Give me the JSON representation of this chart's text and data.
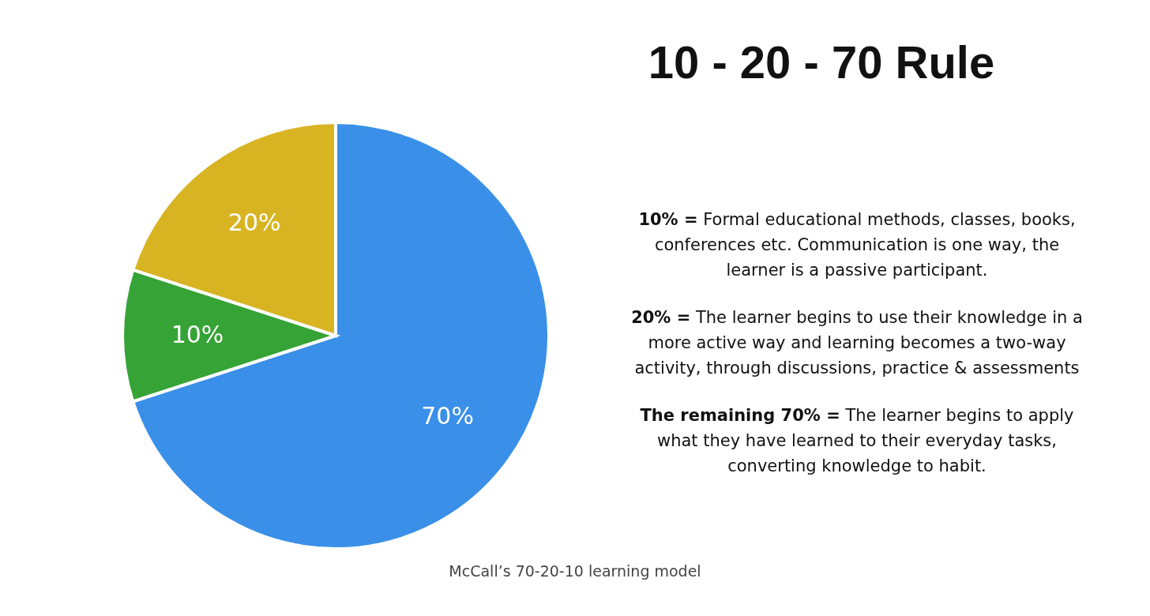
{
  "chart_data": {
    "type": "pie",
    "title": "10 - 20 - 70 Rule",
    "categories": [
      null,
      null,
      null
    ],
    "values": [
      70,
      10,
      20
    ],
    "colors": [
      "#3a8fe8",
      "#36a336",
      "#d8b423"
    ],
    "value_labels": [
      "70%",
      "10%",
      "20%"
    ],
    "legend": false,
    "annotations": [
      "10% =  Formal educational methods, classes, books, conferences etc. Communication is one way, the learner is a passive participant.",
      "20% = The learner begins to use their knowledge in a more active way and learning becomes a two-way activity, through discussions, practice & assessments",
      "The remaining 70% = The learner begins to apply what they have learned to their everyday tasks, converting knowledge to habit.",
      "McCall’s 70-20-10 learning model"
    ]
  }
}
